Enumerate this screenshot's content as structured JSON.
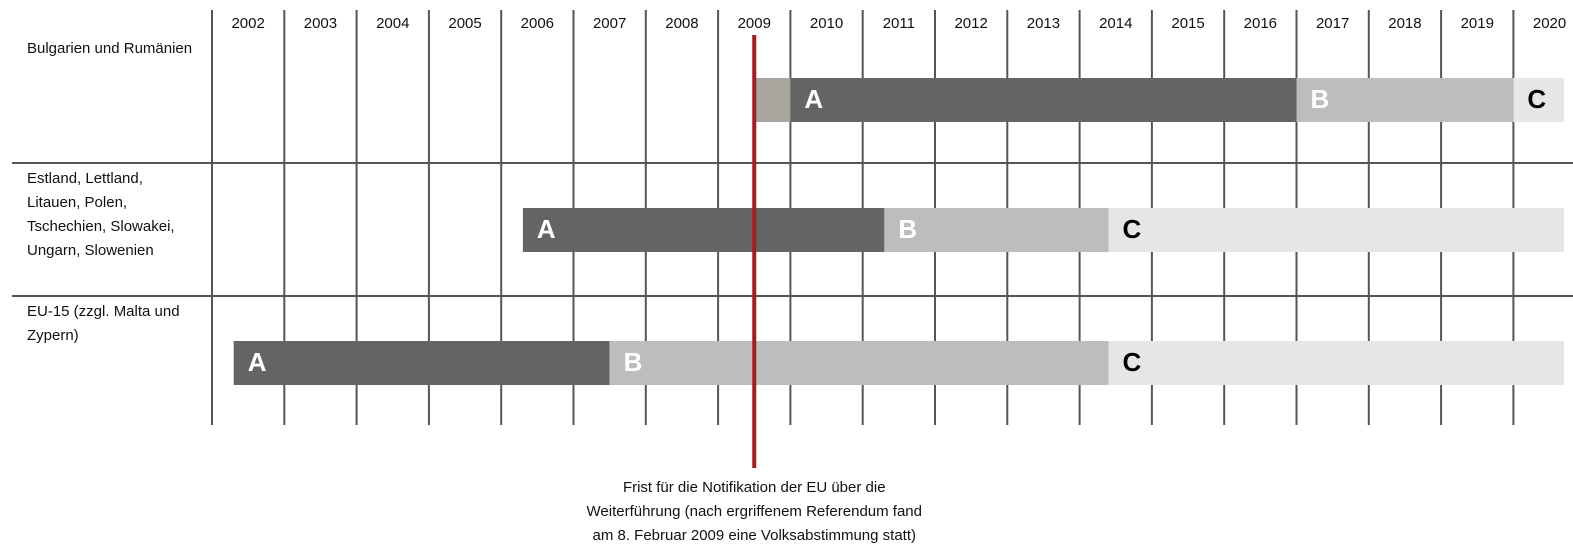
{
  "chart_data": {
    "type": "gantt",
    "xlim": [
      2002,
      2021
    ],
    "xticks": [
      2002,
      2003,
      2004,
      2005,
      2006,
      2007,
      2008,
      2009,
      2010,
      2011,
      2012,
      2013,
      2014,
      2015,
      2016,
      2017,
      2018,
      2019,
      2020
    ],
    "rows": [
      {
        "name": "Bulgarien und Rumänien",
        "segments": [
          {
            "label": null,
            "start": 2009.5,
            "end": 2010,
            "color": "#aaa59f",
            "label_color": "#ffffff"
          },
          {
            "label": "A",
            "start": 2010,
            "end": 2017,
            "color": "#646464",
            "label_color": "#ffffff"
          },
          {
            "label": "B",
            "start": 2017,
            "end": 2020,
            "color": "#bdbdbd",
            "label_color": "#ffffff"
          },
          {
            "label": "C",
            "start": 2020,
            "end": 2020.7,
            "color": "#e6e6e6",
            "label_color": "#000000"
          }
        ]
      },
      {
        "name": "Estland, Lettland, Litauen, Polen, Tschechien, Slowakei, Ungarn, Slowenien",
        "segments": [
          {
            "label": "A",
            "start": 2006.3,
            "end": 2011.3,
            "color": "#646464",
            "label_color": "#ffffff"
          },
          {
            "label": "B",
            "start": 2011.3,
            "end": 2014.4,
            "color": "#bdbdbd",
            "label_color": "#ffffff"
          },
          {
            "label": "C",
            "start": 2014.4,
            "end": 2020.7,
            "color": "#e6e6e6",
            "label_color": "#000000"
          }
        ]
      },
      {
        "name": "EU-15 (zzgl. Malta und Zypern)",
        "segments": [
          {
            "label": "A",
            "start": 2002.3,
            "end": 2007.5,
            "color": "#646464",
            "label_color": "#ffffff"
          },
          {
            "label": "B",
            "start": 2007.5,
            "end": 2014.4,
            "color": "#bdbdbd",
            "label_color": "#ffffff"
          },
          {
            "label": "C",
            "start": 2014.4,
            "end": 2020.7,
            "color": "#e6e6e6",
            "label_color": "#000000"
          }
        ]
      }
    ],
    "marker": {
      "x": 2009.5,
      "color": "#a51d1d",
      "lines": [
        "Frist für die Notifikation der EU über die",
        "Weiterführung (nach ergriffenem Referendum fand",
        "am 8. Februar 2009 eine Volksabstimmung statt)"
      ]
    }
  }
}
